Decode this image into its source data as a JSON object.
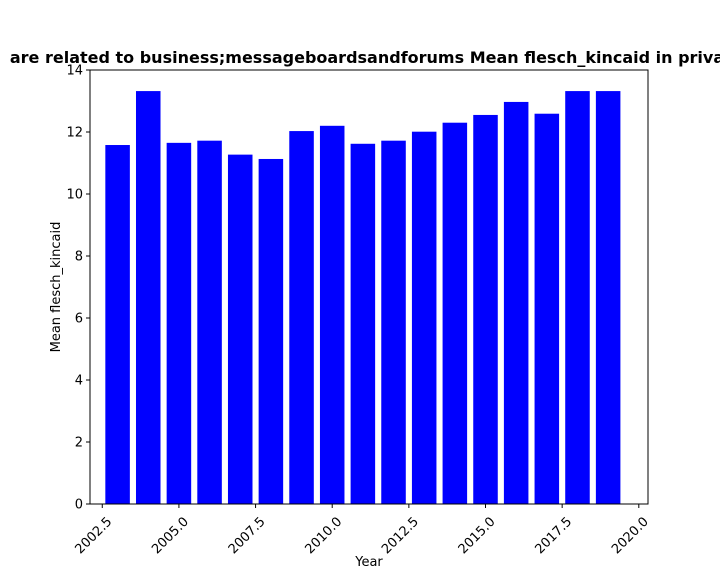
{
  "chart_data": {
    "type": "bar",
    "title": "are related to business;messageboardsandforums Mean flesch_kincaid in priva",
    "xlabel": "Year",
    "ylabel": "Mean flesch_kincaid",
    "x": [
      2003,
      2004,
      2005,
      2006,
      2007,
      2008,
      2009,
      2010,
      2011,
      2012,
      2013,
      2014,
      2015,
      2016,
      2017,
      2018,
      2019
    ],
    "values": [
      11.58,
      13.32,
      11.65,
      11.72,
      11.27,
      11.13,
      12.03,
      12.2,
      11.62,
      11.72,
      12.01,
      12.3,
      12.55,
      12.97,
      12.59,
      13.32,
      13.32
    ],
    "xlim": [
      2002.1,
      2020.3
    ],
    "ylim": [
      0,
      14
    ],
    "xticks": [
      "2002.5",
      "2005.0",
      "2007.5",
      "2010.0",
      "2012.5",
      "2015.0",
      "2017.5",
      "2020.0"
    ],
    "yticks": [
      "0",
      "2",
      "4",
      "6",
      "8",
      "10",
      "12",
      "14"
    ],
    "bar_color": "#0000ff",
    "grid": false,
    "legend": "none"
  }
}
